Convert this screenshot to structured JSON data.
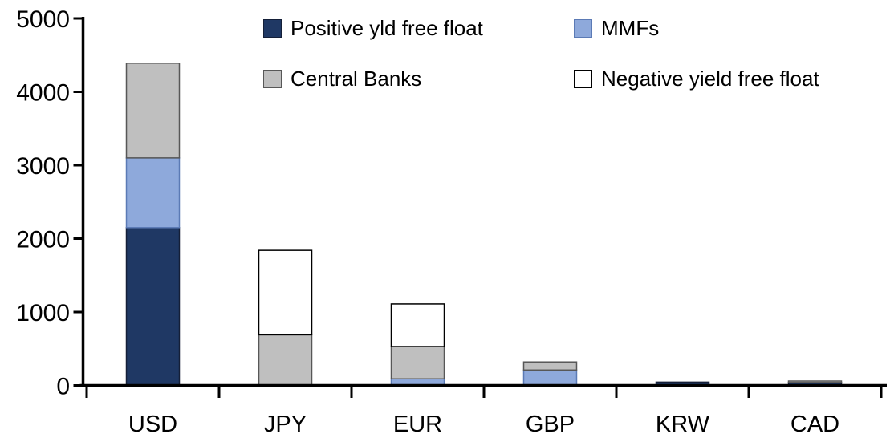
{
  "chart_data": {
    "type": "bar",
    "stacked": true,
    "title": "",
    "xlabel": "",
    "ylabel": "",
    "grid": false,
    "legend_position": "top-inside",
    "categories": [
      "USD",
      "JPY",
      "EUR",
      "GBP",
      "KRW",
      "CAD"
    ],
    "series": [
      {
        "name": "Positive yld free float",
        "color": "#1F3864",
        "border": "#141F38",
        "values": [
          2150,
          0,
          0,
          0,
          45,
          40
        ]
      },
      {
        "name": "MMFs",
        "color": "#8EA9DB",
        "border": "#5B7AB5",
        "values": [
          950,
          0,
          90,
          210,
          0,
          0
        ]
      },
      {
        "name": "Central Banks",
        "color": "#BFBFBF",
        "border": "#575757",
        "values": [
          1290,
          690,
          440,
          110,
          0,
          20
        ]
      },
      {
        "name": "Negative yield free float",
        "color": "#FFFFFF",
        "border": "#000000",
        "values": [
          0,
          1150,
          580,
          0,
          0,
          0
        ]
      }
    ],
    "totals": [
      4390,
      1840,
      1110,
      320,
      45,
      60
    ],
    "ylim": [
      0,
      5000
    ],
    "yticks": [
      0,
      1000,
      2000,
      3000,
      4000,
      5000
    ],
    "axis_color": "#000000",
    "text_color": "#000000"
  }
}
